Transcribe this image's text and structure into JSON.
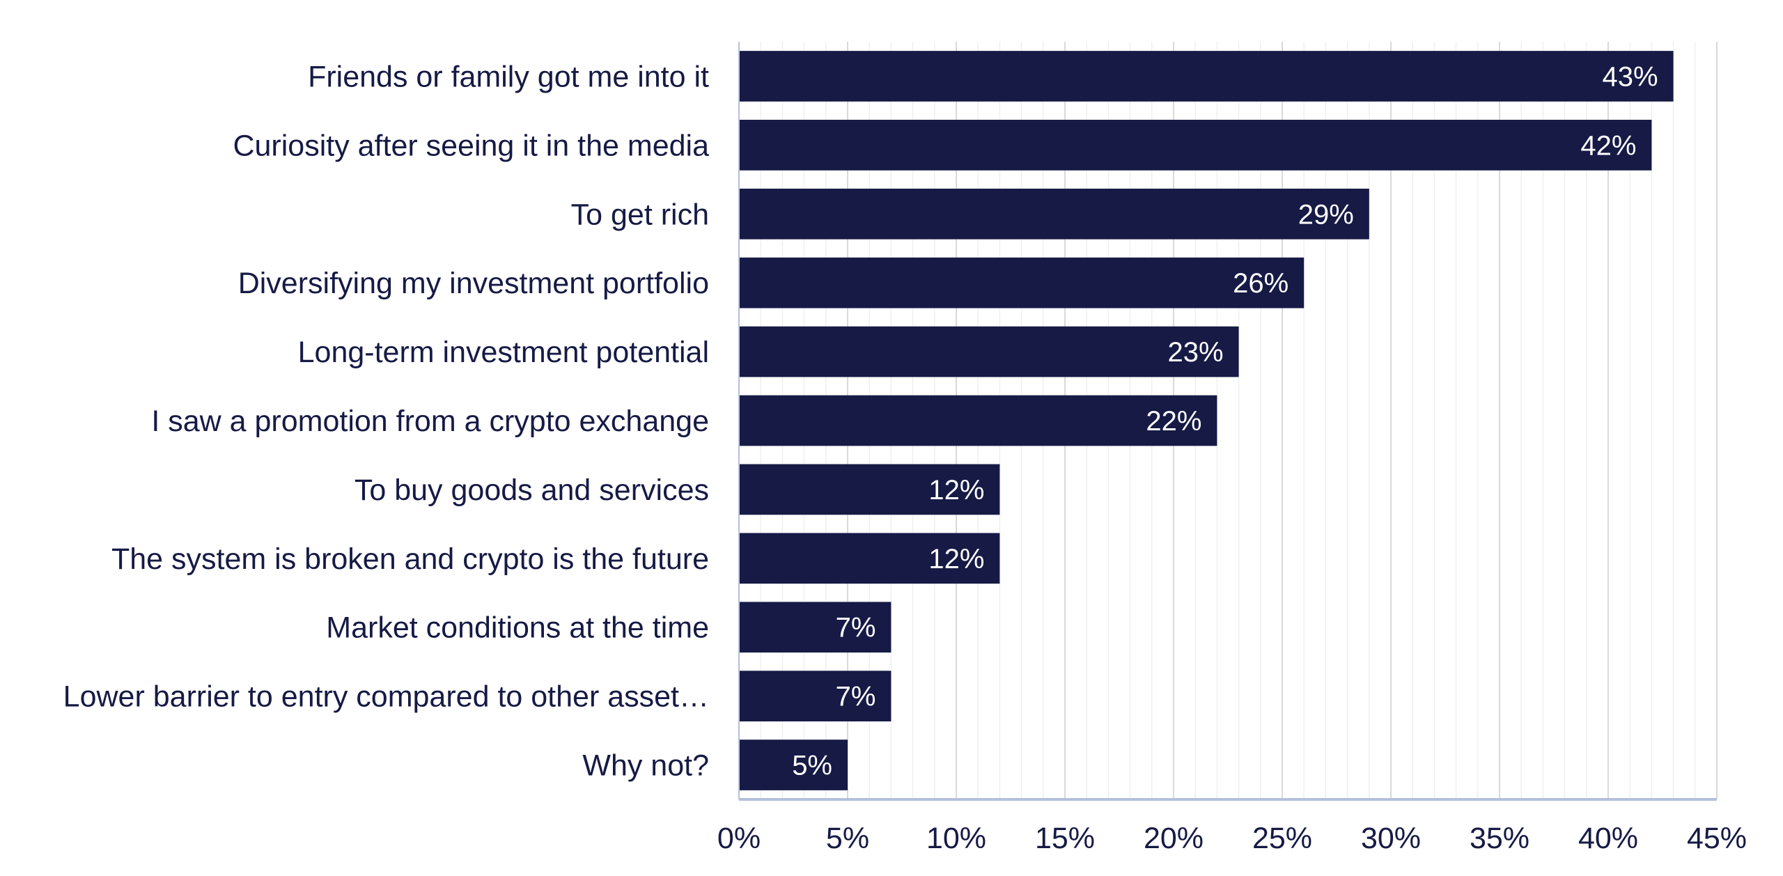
{
  "chart_data": {
    "type": "bar",
    "orientation": "horizontal",
    "title": "",
    "xlabel": "",
    "ylabel": "",
    "categories": [
      "Friends or family got me into it",
      "Curiosity after seeing it in the media",
      "To get rich",
      "Diversifying my investment portfolio",
      "Long-term investment potential",
      "I saw a promotion from a crypto exchange",
      "To buy goods and services",
      "The system is broken and crypto is the future",
      "Market conditions at the time",
      "Lower barrier to entry compared to other asset…",
      "Why not?"
    ],
    "values": [
      43,
      42,
      29,
      26,
      23,
      22,
      12,
      12,
      7,
      7,
      5
    ],
    "data_labels": [
      "43%",
      "42%",
      "29%",
      "26%",
      "23%",
      "22%",
      "12%",
      "12%",
      "7%",
      "7%",
      "5%"
    ],
    "xlim": [
      0,
      45
    ],
    "x_ticks": [
      "0%",
      "5%",
      "10%",
      "15%",
      "20%",
      "25%",
      "30%",
      "35%",
      "40%",
      "45%"
    ],
    "grid": true,
    "legend": "none",
    "colors": {
      "bar": "#161a45",
      "label": "#161a45",
      "data_label": "#ffffff",
      "grid_major": "#d9d9d9",
      "grid_minor": "#efefef",
      "axis": "#b4c0dd"
    }
  }
}
